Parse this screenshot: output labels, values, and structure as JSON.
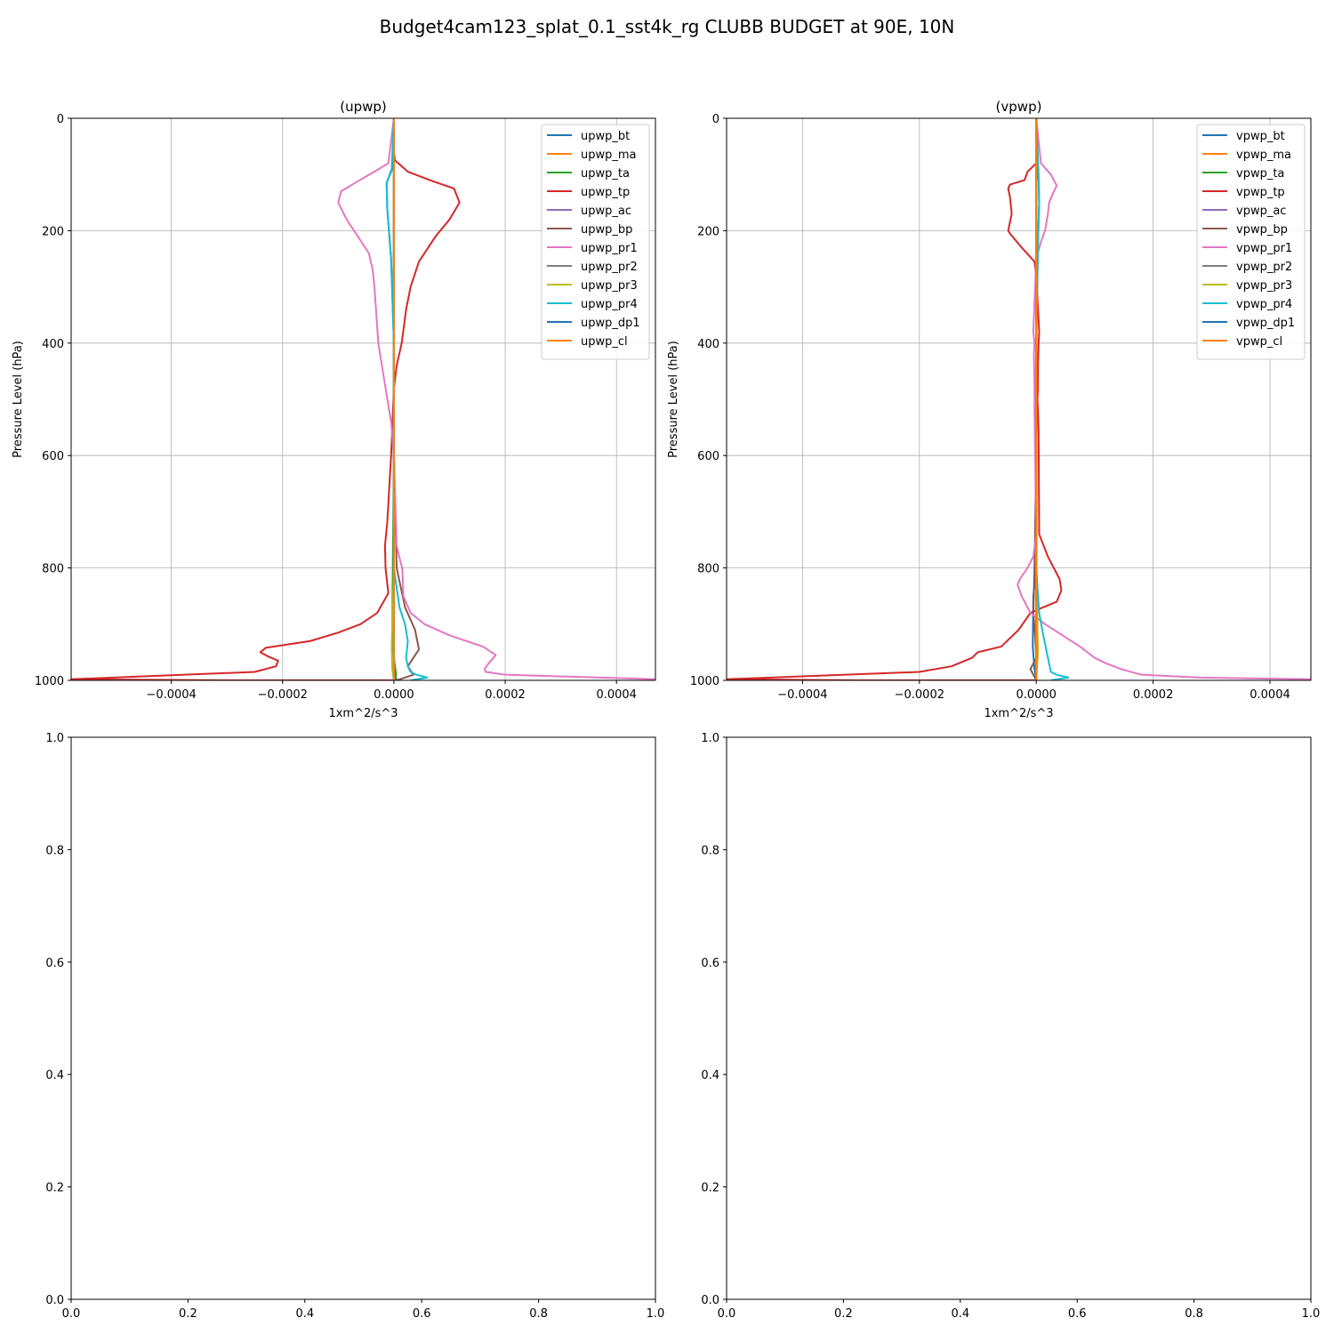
{
  "figure": {
    "title": "Budget4cam123_splat_0.1_sst4k_rg CLUBB BUDGET at 90E, 10N"
  },
  "colors": [
    "#1f77b4",
    "#ff7f0e",
    "#2ca02c",
    "#d62728",
    "#9467bd",
    "#8c564b",
    "#e377c2",
    "#7f7f7f",
    "#bcbd22",
    "#17becf",
    "#1f77b4",
    "#ff7f0e"
  ],
  "chart_data": [
    {
      "type": "line",
      "title": "(upwp)",
      "xlabel": "1xm^2/s^3",
      "ylabel": "Pressure Level (hPa)",
      "xlim": [
        -0.00058,
        0.00047
      ],
      "ylim": [
        1000,
        0
      ],
      "xticks": [
        -0.0004,
        -0.0002,
        0.0,
        0.0002,
        0.0004
      ],
      "xticklabels": [
        "−0.0004",
        "−0.0002",
        "0.0000",
        "0.0002",
        "0.0004"
      ],
      "yticks": [
        0,
        200,
        400,
        600,
        800,
        1000
      ],
      "yticklabels": [
        "0",
        "200",
        "400",
        "600",
        "800",
        "1000"
      ],
      "grid": true,
      "legend_position": "upper right",
      "series": [
        {
          "name": "upwp_bt",
          "x": [
            0,
            0,
            -3e-06,
            -1.3e-05,
            -1.2e-05,
            -5e-06,
            0,
            0,
            0,
            0,
            0,
            2e-06,
            5e-06
          ],
          "y": [
            0,
            60,
            90,
            115,
            160,
            250,
            400,
            600,
            800,
            900,
            960,
            990,
            1000
          ]
        },
        {
          "name": "upwp_ma",
          "x": [
            0,
            0,
            0,
            0,
            0,
            0,
            0,
            0
          ],
          "y": [
            0,
            200,
            400,
            600,
            800,
            900,
            960,
            1000
          ]
        },
        {
          "name": "upwp_ta",
          "x": [
            0,
            0,
            0,
            0,
            -2e-06,
            -3e-06,
            0,
            4e-06,
            2e-06
          ],
          "y": [
            0,
            200,
            400,
            600,
            800,
            900,
            960,
            990,
            1000
          ]
        },
        {
          "name": "upwp_tp",
          "x": [
            0,
            0,
            2e-06,
            2.5e-05,
            7e-05,
            0.000108,
            0.000118,
            0.0001,
            7.5e-05,
            5.5e-05,
            4.5e-05,
            3e-05,
            2.2e-05,
            1.4e-05,
            5e-06,
            0,
            -5e-06,
            -1.2e-05,
            -1.6e-05,
            -1.5e-05,
            -1e-05,
            -3e-05,
            -6e-05,
            -0.0001,
            -0.00015,
            -0.00023,
            -0.00024,
            -0.000225,
            -0.000208,
            -0.000212,
            -0.00025,
            -0.00058,
            -0.0003,
            0
          ],
          "y": [
            0,
            60,
            75,
            95,
            112,
            125,
            150,
            180,
            210,
            240,
            255,
            300,
            340,
            400,
            440,
            480,
            600,
            720,
            760,
            800,
            845,
            880,
            900,
            915,
            930,
            942,
            950,
            958,
            965,
            975,
            985,
            998,
            1000,
            1000
          ]
        },
        {
          "name": "upwp_ac",
          "x": [
            0,
            0,
            0,
            0,
            0,
            0,
            0
          ],
          "y": [
            0,
            200,
            400,
            600,
            800,
            900,
            1000
          ]
        },
        {
          "name": "upwp_bp",
          "x": [
            0,
            0,
            0,
            0,
            5e-06,
            2e-05,
            3.8e-05,
            4.5e-05,
            3.5e-05,
            2.5e-05,
            3.5e-05,
            5e-06
          ],
          "y": [
            0,
            200,
            400,
            600,
            800,
            870,
            910,
            945,
            960,
            975,
            990,
            1000
          ]
        },
        {
          "name": "upwp_pr1",
          "x": [
            0,
            -1e-05,
            -3.5e-05,
            -7e-05,
            -9.5e-05,
            -0.0001,
            -8.5e-05,
            -6.5e-05,
            -4.5e-05,
            -3.8e-05,
            -3.5e-05,
            -2.8e-05,
            -1.5e-05,
            -5e-06,
            0,
            5e-06,
            1.2e-05,
            1.5e-05,
            1.6e-05,
            1.7e-05,
            3e-05,
            5.5e-05,
            0.0001,
            0.00016,
            0.000183,
            0.00017,
            0.000163,
            0.000165,
            0.0002,
            0.00047
          ],
          "y": [
            0,
            80,
            95,
            115,
            130,
            150,
            180,
            210,
            240,
            270,
            300,
            400,
            480,
            540,
            600,
            760,
            790,
            800,
            820,
            850,
            880,
            900,
            920,
            940,
            955,
            970,
            980,
            985,
            990,
            998
          ]
        },
        {
          "name": "upwp_pr2",
          "x": [
            0,
            0,
            0,
            0,
            0,
            0
          ],
          "y": [
            0,
            200,
            400,
            600,
            800,
            1000
          ]
        },
        {
          "name": "upwp_pr3",
          "x": [
            0,
            0,
            0,
            0,
            0,
            -3e-06,
            -4e-06,
            -3e-06,
            0
          ],
          "y": [
            0,
            200,
            400,
            600,
            800,
            900,
            940,
            980,
            1000
          ]
        },
        {
          "name": "upwp_pr4",
          "x": [
            0,
            -4e-06,
            -1.3e-05,
            -1.2e-05,
            -5e-06,
            0,
            0,
            0,
            1e-05,
            2e-05,
            2.5e-05,
            2.2e-05,
            2.5e-05,
            3e-05,
            4e-05,
            6e-05,
            3e-05
          ],
          "y": [
            0,
            90,
            115,
            160,
            250,
            400,
            600,
            800,
            870,
            900,
            930,
            960,
            975,
            985,
            990,
            995,
            1000
          ]
        },
        {
          "name": "upwp_dp1",
          "x": [
            0,
            0,
            0,
            0,
            0,
            0
          ],
          "y": [
            0,
            200,
            400,
            600,
            800,
            1000
          ]
        },
        {
          "name": "upwp_cl",
          "x": [
            0,
            0,
            0,
            0,
            0,
            0
          ],
          "y": [
            0,
            200,
            400,
            600,
            800,
            1000
          ]
        }
      ]
    },
    {
      "type": "line",
      "title": "(vpwp)",
      "xlabel": "1xm^2/s^3",
      "ylabel": "Pressure Level (hPa)",
      "xlim": [
        -0.00053,
        0.00047
      ],
      "ylim": [
        1000,
        0
      ],
      "xticks": [
        -0.0004,
        -0.0002,
        0.0,
        0.0002,
        0.0004
      ],
      "xticklabels": [
        "−0.0004",
        "−0.0002",
        "0.0000",
        "0.0002",
        "0.0004"
      ],
      "yticks": [
        0,
        200,
        400,
        600,
        800,
        1000
      ],
      "yticklabels": [
        "0",
        "200",
        "400",
        "600",
        "800",
        "1000"
      ],
      "grid": true,
      "legend_position": "upper right",
      "series": [
        {
          "name": "vpwp_bt",
          "x": [
            0,
            0,
            4e-06,
            5e-06,
            3e-06,
            0,
            0,
            0,
            -5e-06,
            -6e-06,
            -3e-06,
            0
          ],
          "y": [
            0,
            80,
            110,
            150,
            220,
            400,
            600,
            800,
            850,
            940,
            980,
            1000
          ]
        },
        {
          "name": "vpwp_ma",
          "x": [
            0,
            0,
            0,
            0,
            0,
            0,
            0
          ],
          "y": [
            0,
            200,
            400,
            600,
            800,
            900,
            1000
          ]
        },
        {
          "name": "vpwp_ta",
          "x": [
            0,
            0,
            0,
            0,
            0,
            0
          ],
          "y": [
            0,
            200,
            400,
            600,
            800,
            1000
          ]
        },
        {
          "name": "vpwp_tp",
          "x": [
            0,
            0,
            -1.5e-05,
            -2e-05,
            -4.5e-05,
            -4.8e-05,
            -4.5e-05,
            -4.2e-05,
            -4.8e-05,
            -4.5e-05,
            -2.5e-05,
            -3e-06,
            0,
            5e-06,
            4e-06,
            3e-06,
            3e-06,
            2e-06,
            3e-06,
            4e-06,
            5e-06,
            2e-05,
            4e-05,
            4.3e-05,
            3.5e-05,
            1.2e-05,
            -1e-05,
            -3e-05,
            -6e-05,
            -0.0001,
            -0.000105,
            -0.00011,
            -0.000145,
            -0.0002,
            -0.00053,
            -0.0003,
            0
          ],
          "y": [
            0,
            80,
            95,
            110,
            118,
            125,
            140,
            170,
            200,
            205,
            230,
            255,
            280,
            380,
            400,
            440,
            480,
            500,
            520,
            560,
            740,
            780,
            820,
            840,
            860,
            870,
            880,
            910,
            940,
            950,
            955,
            960,
            975,
            985,
            998,
            1000,
            1000
          ]
        },
        {
          "name": "vpwp_ac",
          "x": [
            0,
            0,
            0,
            0,
            0,
            0
          ],
          "y": [
            0,
            200,
            400,
            600,
            800,
            1000
          ]
        },
        {
          "name": "vpwp_bp",
          "x": [
            0,
            0,
            0,
            0,
            -3e-06,
            -5e-06,
            -2e-06,
            0,
            -5e-06,
            -1e-05,
            -5e-06,
            0
          ],
          "y": [
            0,
            200,
            400,
            600,
            800,
            880,
            920,
            960,
            970,
            980,
            990,
            1000
          ]
        },
        {
          "name": "vpwp_pr1",
          "x": [
            0,
            8e-06,
            2.5e-05,
            3.5e-05,
            2.8e-05,
            2.2e-05,
            2e-05,
            1.5e-05,
            8e-06,
            0,
            -5e-06,
            -3e-06,
            -4e-06,
            -3e-06,
            -3e-06,
            0,
            -5e-06,
            -1.5e-05,
            -2.8e-05,
            -3.2e-05,
            -2.5e-05,
            -1e-05,
            1.5e-05,
            4.5e-05,
            7.5e-05,
            0.0001,
            0.00012,
            0.000145,
            0.00018,
            0.00028,
            0.00047
          ],
          "y": [
            0,
            80,
            100,
            120,
            135,
            150,
            170,
            200,
            220,
            250,
            380,
            400,
            420,
            480,
            520,
            740,
            780,
            800,
            820,
            830,
            850,
            880,
            900,
            920,
            940,
            960,
            970,
            980,
            990,
            995,
            998
          ]
        },
        {
          "name": "vpwp_pr2",
          "x": [
            0,
            0,
            0,
            0,
            0,
            0
          ],
          "y": [
            0,
            200,
            400,
            600,
            800,
            1000
          ]
        },
        {
          "name": "vpwp_pr3",
          "x": [
            0,
            0,
            0,
            0,
            0,
            3e-06,
            0
          ],
          "y": [
            0,
            200,
            400,
            600,
            800,
            950,
            1000
          ]
        },
        {
          "name": "vpwp_pr4",
          "x": [
            0,
            4e-06,
            5e-06,
            3e-06,
            0,
            0,
            0,
            5e-06,
            1.2e-05,
            1.8e-05,
            2.2e-05,
            2.5e-05,
            3.5e-05,
            5.5e-05,
            2.5e-05
          ],
          "y": [
            0,
            100,
            150,
            220,
            400,
            600,
            800,
            880,
            920,
            950,
            970,
            985,
            990,
            995,
            1000
          ]
        },
        {
          "name": "vpwp_dp1",
          "x": [
            0,
            0,
            0,
            0,
            0,
            0
          ],
          "y": [
            0,
            200,
            400,
            600,
            800,
            1000
          ]
        },
        {
          "name": "vpwp_cl",
          "x": [
            0,
            0,
            0,
            0,
            0,
            0
          ],
          "y": [
            0,
            200,
            400,
            600,
            800,
            1000
          ]
        }
      ]
    },
    {
      "type": "line",
      "title": "",
      "xlim": [
        0,
        1
      ],
      "ylim": [
        0,
        1
      ],
      "xticklabels": [
        "0.0",
        "0.2",
        "0.4",
        "0.6",
        "0.8",
        "1.0"
      ],
      "yticklabels": [
        "0.0",
        "0.2",
        "0.4",
        "0.6",
        "0.8",
        "1.0"
      ],
      "grid": false,
      "series": []
    },
    {
      "type": "line",
      "title": "",
      "xlim": [
        0,
        1
      ],
      "ylim": [
        0,
        1
      ],
      "xticklabels": [
        "0.0",
        "0.2",
        "0.4",
        "0.6",
        "0.8",
        "1.0"
      ],
      "yticklabels": [
        "0.0",
        "0.2",
        "0.4",
        "0.6",
        "0.8",
        "1.0"
      ],
      "grid": false,
      "series": []
    }
  ]
}
